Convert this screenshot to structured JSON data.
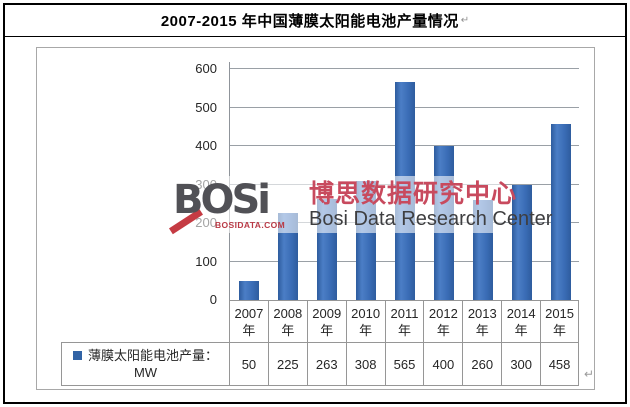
{
  "title": {
    "text": "2007-2015 年中国薄膜太阳能电池产量情况",
    "paragraph_mark": "↵"
  },
  "chart_data": {
    "type": "bar",
    "title": "2007-2015 年中国薄膜太阳能电池产量情况",
    "categories": [
      "2007年",
      "2008年",
      "2009年",
      "2010年",
      "2011年",
      "2012年",
      "2013年",
      "2014年",
      "2015年"
    ],
    "values": [
      50,
      225,
      263,
      308,
      565,
      400,
      260,
      300,
      458
    ],
    "series_name": "薄膜太阳能电池产量：MW",
    "xlabel": "",
    "ylabel": "",
    "ylim": [
      0,
      600
    ],
    "ytick_step": 100,
    "grid": true,
    "legend_position": "data-table-left",
    "bar_color": "#3a6cb5",
    "gridline_color": "#9aa0a6"
  },
  "y_axis": {
    "ticks": [
      "0",
      "100",
      "200",
      "300",
      "400",
      "500",
      "600"
    ]
  },
  "data_table": {
    "year_unit": "年",
    "years": [
      "2007",
      "2008",
      "2009",
      "2010",
      "2011",
      "2012",
      "2013",
      "2014",
      "2015"
    ],
    "values": [
      "50",
      "225",
      "263",
      "308",
      "565",
      "400",
      "260",
      "300",
      "458"
    ],
    "legend_line1": "薄膜太阳能电池产量：",
    "legend_line2": "MW",
    "legend_marker_color": "#3163a5"
  },
  "watermark": {
    "logo_text": "BOSi",
    "domain": "BOSIDATA.COM",
    "cn": "博思数据研究中心",
    "en": "Bosi Data Research Center",
    "cn_color": "#c84a5e",
    "logo_color": "#515156",
    "accent_red": "#c53b43"
  },
  "trailing_paragraph_mark": "↵"
}
